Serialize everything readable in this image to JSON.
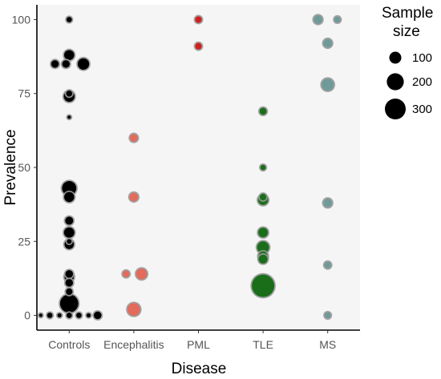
{
  "chart_data": {
    "type": "scatter",
    "xlabel": "Disease",
    "ylabel": "Prevalence",
    "categories": [
      "Controls",
      "Encephalitis",
      "PML",
      "TLE",
      "MS"
    ],
    "ylim": [
      -5,
      105
    ],
    "yticks": [
      0,
      25,
      50,
      75,
      100
    ],
    "grid": false,
    "legend": {
      "title_lines": [
        "Sample",
        "size"
      ],
      "entries": [
        {
          "label": "100",
          "size": 100
        },
        {
          "label": "200",
          "size": 200
        },
        {
          "label": "300",
          "size": 300
        }
      ],
      "position": "right"
    },
    "category_colors": {
      "Controls": "#000000",
      "Encephalitis": "#e26b5b",
      "PML": "#d01f1f",
      "TLE": "#1a6e1a",
      "MS": "#6f9a98"
    },
    "points": [
      {
        "category": "Controls",
        "jitter": 0,
        "y": 100,
        "size": 20
      },
      {
        "category": "Controls",
        "jitter": 0,
        "y": 88,
        "size": 70
      },
      {
        "category": "Controls",
        "jitter": -0.22,
        "y": 85,
        "size": 40
      },
      {
        "category": "Controls",
        "jitter": -0.05,
        "y": 85,
        "size": 40
      },
      {
        "category": "Controls",
        "jitter": 0.22,
        "y": 85,
        "size": 90
      },
      {
        "category": "Controls",
        "jitter": 0,
        "y": 75,
        "size": 25
      },
      {
        "category": "Controls",
        "jitter": 0,
        "y": 74,
        "size": 80
      },
      {
        "category": "Controls",
        "jitter": 0,
        "y": 67,
        "size": 8
      },
      {
        "category": "Controls",
        "jitter": 0,
        "y": 43,
        "size": 140
      },
      {
        "category": "Controls",
        "jitter": 0,
        "y": 40,
        "size": 70
      },
      {
        "category": "Controls",
        "jitter": 0,
        "y": 32,
        "size": 45
      },
      {
        "category": "Controls",
        "jitter": 0,
        "y": 28,
        "size": 75
      },
      {
        "category": "Controls",
        "jitter": 0,
        "y": 25,
        "size": 15
      },
      {
        "category": "Controls",
        "jitter": 0,
        "y": 24,
        "size": 60
      },
      {
        "category": "Controls",
        "jitter": 0,
        "y": 14,
        "size": 40
      },
      {
        "category": "Controls",
        "jitter": 0,
        "y": 13,
        "size": 60
      },
      {
        "category": "Controls",
        "jitter": 0,
        "y": 11,
        "size": 40
      },
      {
        "category": "Controls",
        "jitter": 0,
        "y": 8,
        "size": 30
      },
      {
        "category": "Controls",
        "jitter": 0,
        "y": 4,
        "size": 230
      },
      {
        "category": "Controls",
        "jitter": -0.44,
        "y": 0,
        "size": 8
      },
      {
        "category": "Controls",
        "jitter": -0.3,
        "y": 0,
        "size": 20
      },
      {
        "category": "Controls",
        "jitter": -0.15,
        "y": 0,
        "size": 12
      },
      {
        "category": "Controls",
        "jitter": 0,
        "y": 0,
        "size": 20
      },
      {
        "category": "Controls",
        "jitter": 0.15,
        "y": 0,
        "size": 20
      },
      {
        "category": "Controls",
        "jitter": 0.3,
        "y": 0,
        "size": 12
      },
      {
        "category": "Controls",
        "jitter": 0.44,
        "y": 0,
        "size": 40
      },
      {
        "category": "Encephalitis",
        "jitter": 0,
        "y": 60,
        "size": 40
      },
      {
        "category": "Encephalitis",
        "jitter": 0,
        "y": 40,
        "size": 50
      },
      {
        "category": "Encephalitis",
        "jitter": -0.12,
        "y": 14,
        "size": 30
      },
      {
        "category": "Encephalitis",
        "jitter": 0.12,
        "y": 14,
        "size": 80
      },
      {
        "category": "Encephalitis",
        "jitter": 0,
        "y": 2,
        "size": 110
      },
      {
        "category": "PML",
        "jitter": 0,
        "y": 100,
        "size": 30
      },
      {
        "category": "PML",
        "jitter": 0,
        "y": 91,
        "size": 30
      },
      {
        "category": "TLE",
        "jitter": 0,
        "y": 69,
        "size": 35
      },
      {
        "category": "TLE",
        "jitter": 0,
        "y": 50,
        "size": 20
      },
      {
        "category": "TLE",
        "jitter": 0,
        "y": 40,
        "size": 30
      },
      {
        "category": "TLE",
        "jitter": 0,
        "y": 39,
        "size": 70
      },
      {
        "category": "TLE",
        "jitter": 0,
        "y": 28,
        "size": 65
      },
      {
        "category": "TLE",
        "jitter": 0,
        "y": 23,
        "size": 100
      },
      {
        "category": "TLE",
        "jitter": 0,
        "y": 20,
        "size": 60
      },
      {
        "category": "TLE",
        "jitter": 0,
        "y": 19,
        "size": 55
      },
      {
        "category": "TLE",
        "jitter": 0,
        "y": 10,
        "size": 350
      },
      {
        "category": "MS",
        "jitter": -0.15,
        "y": 100,
        "size": 50
      },
      {
        "category": "MS",
        "jitter": 0.15,
        "y": 100,
        "size": 25
      },
      {
        "category": "MS",
        "jitter": 0,
        "y": 92,
        "size": 50
      },
      {
        "category": "MS",
        "jitter": 0,
        "y": 78,
        "size": 100
      },
      {
        "category": "MS",
        "jitter": 0,
        "y": 38,
        "size": 50
      },
      {
        "category": "MS",
        "jitter": 0,
        "y": 17,
        "size": 30
      },
      {
        "category": "MS",
        "jitter": 0,
        "y": 0,
        "size": 25
      }
    ]
  }
}
